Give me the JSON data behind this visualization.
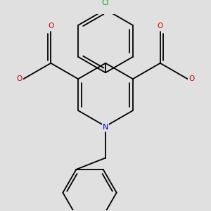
{
  "background_color": "#e0e0e0",
  "bond_color": "#000000",
  "cl_color": "#00aa00",
  "n_color": "#0000cc",
  "o_color": "#cc0000",
  "lw": 1.3,
  "figsize": [
    3.0,
    3.0
  ],
  "dpi": 100,
  "xlim": [
    -2.8,
    2.8
  ],
  "ylim": [
    -3.2,
    3.0
  ]
}
